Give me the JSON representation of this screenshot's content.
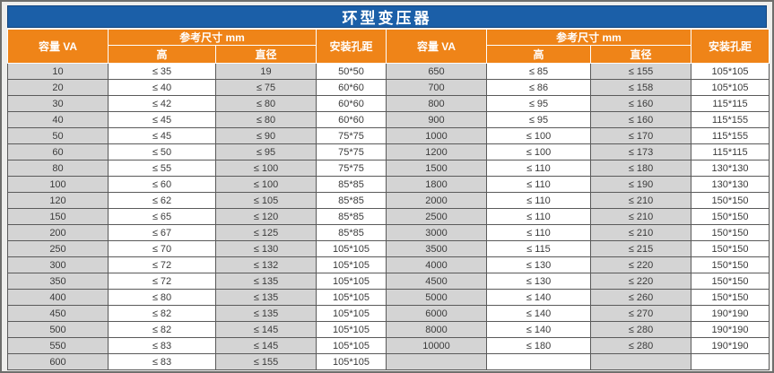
{
  "title": "环型变压器",
  "colors": {
    "title_bar": "#1b5fa8",
    "header": "#ef8418",
    "row_gray": "#d4d4d4",
    "row_white": "#ffffff",
    "border": "#5a5a5a",
    "text": "#3b3b3b",
    "header_text": "#ffffff"
  },
  "table": {
    "headers": {
      "capacity": "容量 VA",
      "ref_size": "参考尺寸 mm",
      "height": "高",
      "diameter": "直径",
      "hole_distance": "安装孔距"
    },
    "column_names": [
      "capacity",
      "height",
      "diameter",
      "hole-distance"
    ],
    "rows": [
      [
        "10",
        "≤ 35",
        "19",
        "50*50",
        "650",
        "≤ 85",
        "≤ 155",
        "105*105"
      ],
      [
        "20",
        "≤ 40",
        "≤ 75",
        "60*60",
        "700",
        "≤ 86",
        "≤ 158",
        "105*105"
      ],
      [
        "30",
        "≤ 42",
        "≤ 80",
        "60*60",
        "800",
        "≤ 95",
        "≤ 160",
        "115*115"
      ],
      [
        "40",
        "≤ 45",
        "≤ 80",
        "60*60",
        "900",
        "≤ 95",
        "≤ 160",
        "115*155"
      ],
      [
        "50",
        "≤ 45",
        "≤ 90",
        "75*75",
        "1000",
        "≤ 100",
        "≤ 170",
        "115*155"
      ],
      [
        "60",
        "≤ 50",
        "≤ 95",
        "75*75",
        "1200",
        "≤ 100",
        "≤ 173",
        "115*115"
      ],
      [
        "80",
        "≤ 55",
        "≤ 100",
        "75*75",
        "1500",
        "≤ 110",
        "≤ 180",
        "130*130"
      ],
      [
        "100",
        "≤ 60",
        "≤ 100",
        "85*85",
        "1800",
        "≤ 110",
        "≤ 190",
        "130*130"
      ],
      [
        "120",
        "≤ 62",
        "≤ 105",
        "85*85",
        "2000",
        "≤ 110",
        "≤ 210",
        "150*150"
      ],
      [
        "150",
        "≤ 65",
        "≤ 120",
        "85*85",
        "2500",
        "≤ 110",
        "≤ 210",
        "150*150"
      ],
      [
        "200",
        "≤ 67",
        "≤ 125",
        "85*85",
        "3000",
        "≤ 110",
        "≤ 210",
        "150*150"
      ],
      [
        "250",
        "≤ 70",
        "≤ 130",
        "105*105",
        "3500",
        "≤ 115",
        "≤ 215",
        "150*150"
      ],
      [
        "300",
        "≤ 72",
        "≤ 132",
        "105*105",
        "4000",
        "≤ 130",
        "≤ 220",
        "150*150"
      ],
      [
        "350",
        "≤ 72",
        "≤ 135",
        "105*105",
        "4500",
        "≤ 130",
        "≤ 220",
        "150*150"
      ],
      [
        "400",
        "≤ 80",
        "≤ 135",
        "105*105",
        "5000",
        "≤ 140",
        "≤ 260",
        "150*150"
      ],
      [
        "450",
        "≤ 82",
        "≤ 135",
        "105*105",
        "6000",
        "≤ 140",
        "≤ 270",
        "190*190"
      ],
      [
        "500",
        "≤ 82",
        "≤ 145",
        "105*105",
        "8000",
        "≤ 140",
        "≤ 280",
        "190*190"
      ],
      [
        "550",
        "≤ 83",
        "≤ 145",
        "105*105",
        "10000",
        "≤ 180",
        "≤ 280",
        "190*190"
      ],
      [
        "600",
        "≤ 83",
        "≤ 155",
        "105*105",
        "",
        "",
        "",
        ""
      ]
    ]
  }
}
